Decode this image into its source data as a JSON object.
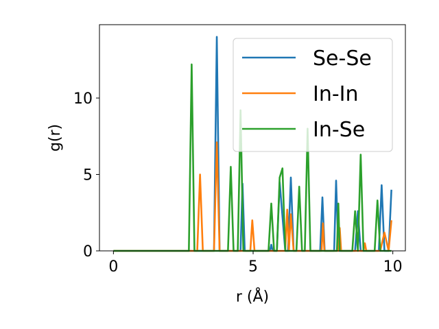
{
  "chart_data": {
    "type": "line",
    "xlabel": "r (Å)",
    "ylabel": "g(r)",
    "xlim": [
      -0.5,
      10.45
    ],
    "ylim": [
      0,
      14.8
    ],
    "xticks": [
      0,
      5,
      10
    ],
    "yticks": [
      0,
      5,
      10
    ],
    "xtick_labels": [
      "0",
      "5",
      "10"
    ],
    "ytick_labels": [
      "0",
      "5",
      "10"
    ],
    "grid": false,
    "legend_position": "upper right",
    "series": [
      {
        "name": "Se-Se",
        "color": "#1f77b4",
        "x": [
          0,
          2.65,
          2.7,
          3.6,
          3.7,
          3.8,
          4.55,
          4.62,
          4.7,
          4.72,
          4.77,
          5.55,
          5.6,
          5.65,
          5.7,
          5.85,
          5.95,
          6.15,
          6.25,
          6.35,
          6.45,
          7.4,
          7.48,
          7.56,
          7.9,
          7.97,
          8.05,
          8.65,
          8.75,
          8.85,
          9.25,
          9.4,
          9.45,
          9.5,
          9.6,
          9.7,
          9.85,
          9.95
        ],
        "y": [
          0,
          0,
          0,
          0,
          14.0,
          0,
          0,
          4.4,
          0,
          0,
          0,
          0,
          0,
          0.4,
          0,
          0,
          4.5,
          0,
          0,
          4.8,
          0,
          0,
          3.5,
          0,
          0,
          4.6,
          0,
          0,
          2.6,
          0,
          0,
          0,
          0,
          0,
          4.3,
          0,
          0,
          4.0
        ]
      },
      {
        "name": "In-In",
        "color": "#ff7f0e",
        "x": [
          0,
          3.0,
          3.1,
          3.2,
          3.6,
          3.7,
          3.8,
          4.9,
          4.97,
          5.05,
          6.15,
          6.22,
          6.28,
          6.35,
          6.45,
          7.45,
          7.5,
          7.55,
          8.05,
          8.1,
          8.15,
          8.95,
          9.0,
          9.05,
          9.55,
          9.7,
          9.85,
          9.95
        ],
        "y": [
          0,
          0,
          5.0,
          0,
          0,
          7.1,
          0,
          0,
          2.0,
          0,
          0,
          2.7,
          0,
          2.4,
          0,
          0,
          1.8,
          0,
          0,
          1.5,
          0,
          0,
          0.5,
          0,
          0,
          1.2,
          0,
          2.0
        ]
      },
      {
        "name": "In-Se",
        "color": "#2ca02c",
        "x": [
          0,
          2.7,
          2.8,
          2.9,
          3.05,
          4.1,
          4.2,
          4.3,
          4.45,
          4.55,
          4.65,
          5.55,
          5.65,
          5.75,
          5.85,
          5.95,
          6.05,
          6.15,
          6.25,
          6.55,
          6.65,
          6.75,
          6.85,
          6.95,
          7.05,
          8.0,
          8.05,
          8.1,
          8.55,
          8.65,
          8.75,
          8.85,
          8.95,
          9.05,
          9.15,
          9.35,
          9.45,
          9.55,
          9.65,
          9.75,
          9.85,
          9.95
        ],
        "y": [
          0,
          0,
          12.2,
          0,
          0,
          0,
          5.5,
          0,
          0,
          9.2,
          0,
          0,
          3.1,
          0,
          0,
          4.8,
          5.4,
          0,
          0,
          0,
          4.2,
          0,
          0,
          8.0,
          0,
          0,
          3.1,
          0,
          0,
          2.6,
          0,
          6.3,
          0,
          0,
          0,
          0,
          3.3,
          0,
          0,
          0,
          0,
          0
        ]
      }
    ]
  }
}
